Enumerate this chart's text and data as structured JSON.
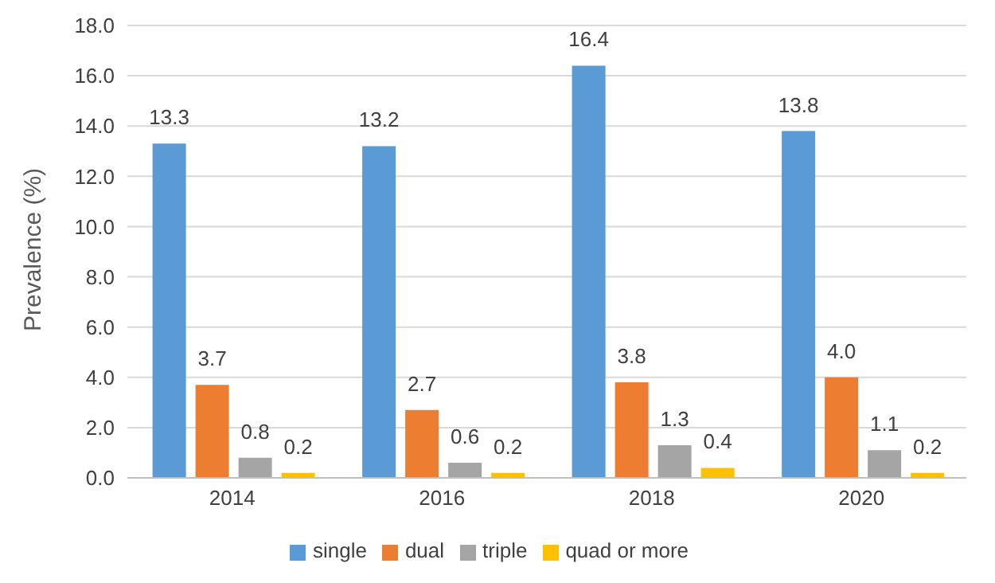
{
  "chart_data": {
    "type": "bar",
    "ylabel": "Prevalence (%)",
    "categories": [
      "2014",
      "2016",
      "2018",
      "2020"
    ],
    "series": [
      {
        "name": "single",
        "color": "#5b9bd5",
        "values": [
          13.3,
          13.2,
          16.4,
          13.8
        ],
        "value_labels": [
          "13.3",
          "13.2",
          "16.4",
          "13.8"
        ]
      },
      {
        "name": "dual",
        "color": "#ed7d31",
        "values": [
          3.7,
          2.7,
          3.8,
          4.0
        ],
        "value_labels": [
          "3.7",
          "2.7",
          "3.8",
          "4.0"
        ]
      },
      {
        "name": "triple",
        "color": "#a5a5a5",
        "values": [
          0.8,
          0.6,
          1.3,
          1.1
        ],
        "value_labels": [
          "0.8",
          "0.6",
          "1.3",
          "1.1"
        ]
      },
      {
        "name": "quad or more",
        "color": "#ffc000",
        "values": [
          0.2,
          0.2,
          0.4,
          0.2
        ],
        "value_labels": [
          "0.2",
          "0.2",
          "0.4",
          "0.2"
        ]
      }
    ],
    "ylim": [
      0,
      18
    ],
    "yticks": [
      {
        "value": 0,
        "label": "0.0"
      },
      {
        "value": 2,
        "label": "2.0"
      },
      {
        "value": 4,
        "label": "4.0"
      },
      {
        "value": 6,
        "label": "6.0"
      },
      {
        "value": 8,
        "label": "8.0"
      },
      {
        "value": 10,
        "label": "10.0"
      },
      {
        "value": 12,
        "label": "12.0"
      },
      {
        "value": 14,
        "label": "14.0"
      },
      {
        "value": 16,
        "label": "16.0"
      },
      {
        "value": 18,
        "label": "18.0"
      }
    ],
    "grid": "y",
    "legend": "bottom"
  }
}
